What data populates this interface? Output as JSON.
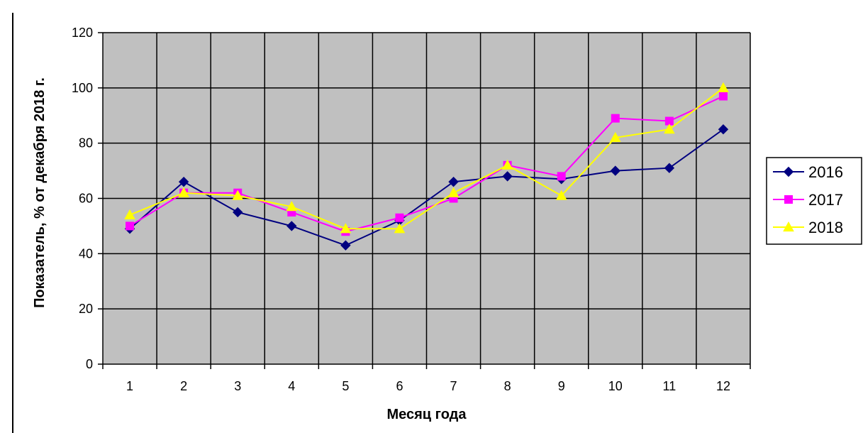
{
  "chart_data": {
    "type": "line",
    "title": "",
    "xlabel": "Месяц года",
    "ylabel": "Показатель, % от декабря 2018 г.",
    "ylim": [
      0,
      120
    ],
    "yticks": [
      "0",
      "20",
      "40",
      "60",
      "80",
      "100",
      "120"
    ],
    "categories": [
      "1",
      "2",
      "3",
      "4",
      "5",
      "6",
      "7",
      "8",
      "9",
      "10",
      "11",
      "12"
    ],
    "grid": true,
    "legend": "right",
    "plot_background": "#c0c0c0",
    "series": [
      {
        "name": "2016",
        "color": "#000080",
        "marker": "diamond",
        "values": [
          49,
          66,
          55,
          50,
          43,
          52,
          66,
          68,
          67,
          70,
          71,
          85
        ]
      },
      {
        "name": "2017",
        "color": "#ff00ff",
        "marker": "square",
        "values": [
          50,
          62,
          62,
          55,
          48,
          53,
          60,
          72,
          68,
          89,
          88,
          97
        ]
      },
      {
        "name": "2018",
        "color": "#ffff00",
        "marker": "triangle",
        "values": [
          54,
          62,
          61,
          57,
          49,
          49,
          62,
          72,
          61,
          82,
          85,
          100
        ]
      }
    ]
  }
}
